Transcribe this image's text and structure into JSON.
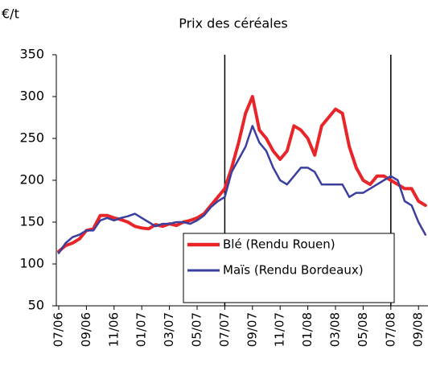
{
  "chart_data": {
    "type": "line",
    "title": "Prix des céréales",
    "y_label": "€/t",
    "categories": [
      "07/06",
      null,
      null,
      null,
      "09/06",
      null,
      null,
      null,
      "11/06",
      null,
      null,
      null,
      "01/07",
      null,
      null,
      null,
      "03/07",
      null,
      null,
      null,
      "05/07",
      null,
      null,
      null,
      "07/07",
      null,
      null,
      null,
      "09/07",
      null,
      null,
      null,
      "11/07",
      null,
      null,
      null,
      "01/08",
      null,
      null,
      null,
      "03/08",
      null,
      null,
      null,
      "05/08",
      null,
      null,
      null,
      "07/08",
      null,
      null,
      null,
      "09/08",
      null
    ],
    "series": [
      {
        "name": "Blé (Rendu Rouen)",
        "color": "#e8262a",
        "values": [
          115,
          122,
          125,
          130,
          140,
          142,
          158,
          158,
          155,
          153,
          150,
          145,
          143,
          142,
          147,
          145,
          148,
          146,
          150,
          152,
          155,
          160,
          170,
          180,
          190,
          215,
          245,
          280,
          300,
          260,
          250,
          235,
          225,
          235,
          265,
          260,
          250,
          230,
          265,
          275,
          285,
          280,
          240,
          215,
          200,
          195,
          205,
          205,
          200,
          195,
          190,
          190,
          175,
          170
        ]
      },
      {
        "name": "Maïs (Rendu Bordeaux)",
        "color": "#3a3fa0",
        "values": [
          113,
          125,
          132,
          135,
          140,
          140,
          152,
          155,
          152,
          155,
          157,
          160,
          155,
          150,
          145,
          148,
          148,
          150,
          150,
          148,
          152,
          158,
          168,
          175,
          180,
          210,
          225,
          240,
          265,
          245,
          235,
          215,
          200,
          195,
          205,
          215,
          215,
          210,
          195,
          195,
          195,
          195,
          180,
          185,
          185,
          190,
          195,
          200,
          205,
          200,
          175,
          170,
          150,
          135
        ]
      }
    ],
    "markers": [
      "07/07",
      "07/08"
    ],
    "ylim": [
      50,
      350
    ],
    "yticks": [
      50,
      100,
      150,
      200,
      250,
      300,
      350
    ],
    "grid": false,
    "legend": "lower-center"
  }
}
